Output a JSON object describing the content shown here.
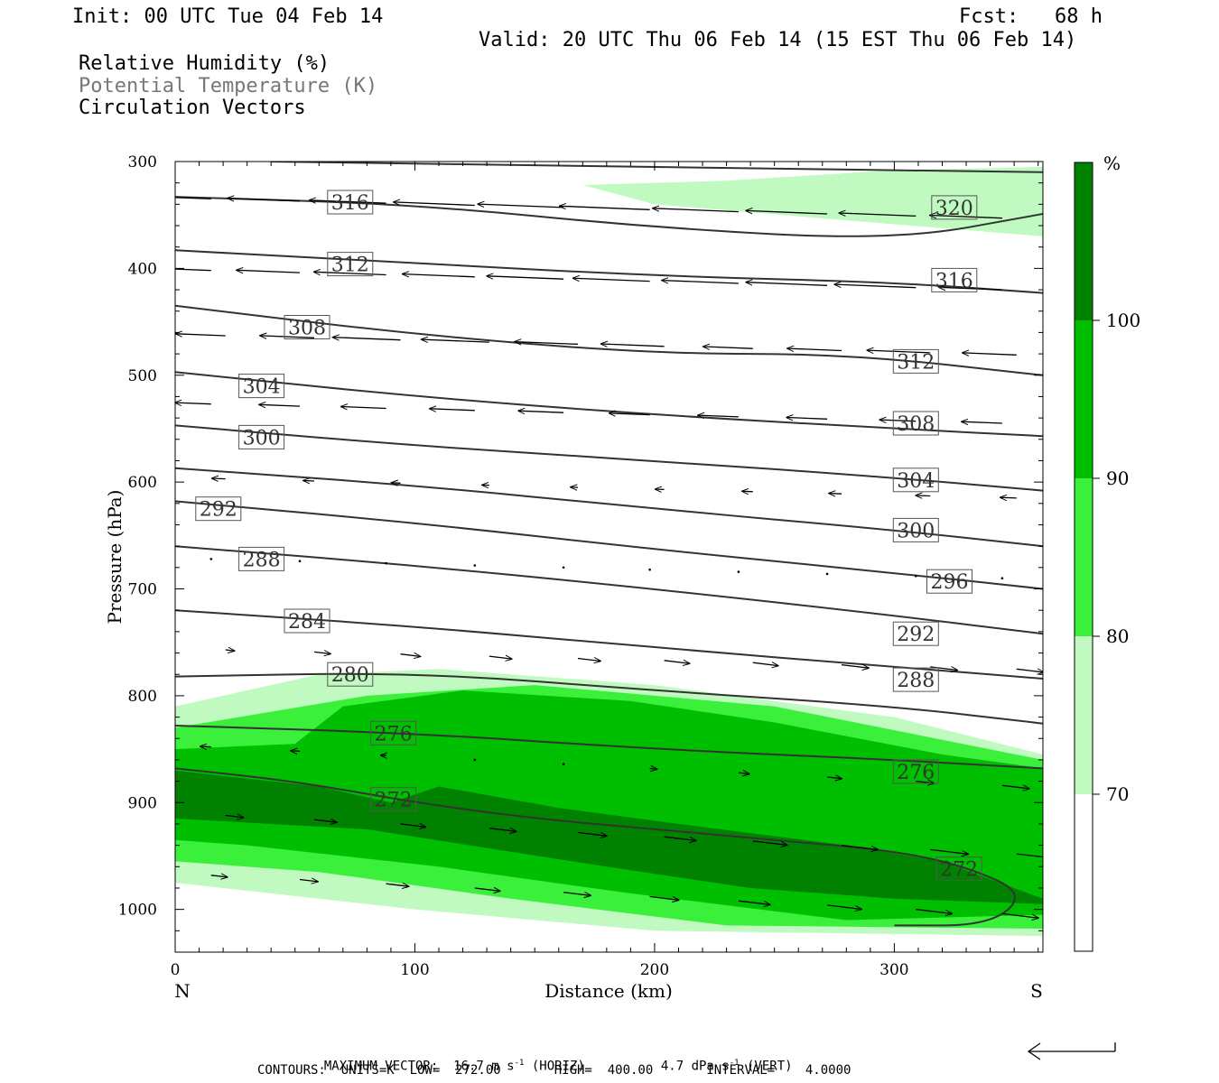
{
  "header": {
    "init": "Init: 00 UTC Tue 04 Feb 14",
    "fcst": "Fcst:   68 h",
    "valid": "Valid: 20 UTC Thu 06 Feb 14 (15 EST Thu 06 Feb 14)"
  },
  "fields": {
    "rh": "Relative Humidity (%)",
    "theta": "Potential Temperature (K)",
    "vectors": "Circulation Vectors"
  },
  "colors": {
    "rh70": "#c0fac0",
    "rh80": "#3af03a",
    "rh90": "#00be00",
    "rh100": "#008200",
    "theta_line": "#333333",
    "frame": "#000000"
  },
  "chart_data": {
    "type": "contour",
    "xlabel": "Distance (km)",
    "ylabel": "Pressure (hPa)",
    "xlim": [
      0,
      362
    ],
    "ylim": [
      1040,
      300
    ],
    "xticks": [
      "0",
      "100",
      "200",
      "300"
    ],
    "yticks": [
      "300",
      "400",
      "500",
      "600",
      "700",
      "800",
      "900",
      "1000"
    ],
    "left_endpoint": "N",
    "right_endpoint": "S",
    "colorbar": {
      "unit": "%",
      "levels": [
        "70",
        "80",
        "90",
        "100"
      ]
    },
    "theta_contours": [
      {
        "label": "272",
        "points": [
          [
            0,
            868
          ],
          [
            50,
            880
          ],
          [
            100,
            900
          ],
          [
            150,
            915
          ],
          [
            200,
            925
          ],
          [
            250,
            935
          ],
          [
            300,
            945
          ],
          [
            330,
            960
          ],
          [
            355,
            985
          ],
          [
            340,
            1015
          ],
          [
            300,
            1015
          ]
        ]
      },
      {
        "label": "276",
        "points": [
          [
            0,
            828
          ],
          [
            100,
            835
          ],
          [
            200,
            850
          ],
          [
            300,
            860
          ],
          [
            362,
            868
          ]
        ]
      },
      {
        "label": "280",
        "points": [
          [
            0,
            782
          ],
          [
            100,
            778
          ],
          [
            200,
            795
          ],
          [
            300,
            810
          ],
          [
            362,
            826
          ]
        ]
      },
      {
        "label": "284",
        "points": [
          [
            0,
            720
          ],
          [
            100,
            735
          ],
          [
            200,
            755
          ],
          [
            300,
            773
          ],
          [
            362,
            784
          ]
        ]
      },
      {
        "label": "288",
        "points": [
          [
            0,
            660
          ],
          [
            100,
            678
          ],
          [
            200,
            700
          ],
          [
            300,
            725
          ],
          [
            362,
            742
          ]
        ]
      },
      {
        "label": "292",
        "points": [
          [
            0,
            618
          ],
          [
            100,
            638
          ],
          [
            200,
            663
          ],
          [
            300,
            685
          ],
          [
            362,
            700
          ]
        ]
      },
      {
        "label": "296",
        "points": [
          [
            0,
            587
          ],
          [
            100,
            603
          ],
          [
            200,
            625
          ],
          [
            300,
            645
          ],
          [
            362,
            660
          ]
        ]
      },
      {
        "label": "300",
        "points": [
          [
            0,
            547
          ],
          [
            100,
            566
          ],
          [
            200,
            580
          ],
          [
            300,
            596
          ],
          [
            362,
            608
          ]
        ]
      },
      {
        "label": "304",
        "points": [
          [
            0,
            497
          ],
          [
            100,
            520
          ],
          [
            200,
            537
          ],
          [
            300,
            550
          ],
          [
            362,
            557
          ]
        ]
      },
      {
        "label": "308",
        "points": [
          [
            0,
            435
          ],
          [
            100,
            462
          ],
          [
            200,
            480
          ],
          [
            280,
            480
          ],
          [
            362,
            500
          ]
        ]
      },
      {
        "label": "312",
        "points": [
          [
            0,
            383
          ],
          [
            100,
            395
          ],
          [
            200,
            407
          ],
          [
            300,
            413
          ],
          [
            362,
            423
          ]
        ]
      },
      {
        "label": "316",
        "points": [
          [
            0,
            333
          ],
          [
            100,
            340
          ],
          [
            200,
            362
          ],
          [
            300,
            374
          ],
          [
            362,
            349
          ]
        ]
      },
      {
        "label": "320",
        "points": [
          [
            40,
            300
          ],
          [
            200,
            305
          ],
          [
            362,
            310
          ]
        ]
      }
    ],
    "theta_labels": [
      {
        "text": "316",
        "x": 73,
        "y": 338
      },
      {
        "text": "312",
        "x": 73,
        "y": 396
      },
      {
        "text": "308",
        "x": 55,
        "y": 455
      },
      {
        "text": "304",
        "x": 36,
        "y": 510
      },
      {
        "text": "300",
        "x": 36,
        "y": 558
      },
      {
        "text": "292",
        "x": 18,
        "y": 625
      },
      {
        "text": "288",
        "x": 36,
        "y": 672
      },
      {
        "text": "284",
        "x": 55,
        "y": 730
      },
      {
        "text": "280",
        "x": 73,
        "y": 780
      },
      {
        "text": "276",
        "x": 91,
        "y": 835
      },
      {
        "text": "272",
        "x": 91,
        "y": 897
      },
      {
        "text": "320",
        "x": 325,
        "y": 343
      },
      {
        "text": "316",
        "x": 325,
        "y": 411
      },
      {
        "text": "312",
        "x": 309,
        "y": 487
      },
      {
        "text": "308",
        "x": 309,
        "y": 545
      },
      {
        "text": "304",
        "x": 309,
        "y": 598
      },
      {
        "text": "300",
        "x": 309,
        "y": 645
      },
      {
        "text": "296",
        "x": 323,
        "y": 693
      },
      {
        "text": "292",
        "x": 309,
        "y": 742
      },
      {
        "text": "288",
        "x": 309,
        "y": 785
      },
      {
        "text": "276",
        "x": 309,
        "y": 871
      },
      {
        "text": "272",
        "x": 327,
        "y": 962
      }
    ],
    "rh_regions": [
      {
        "level": "70",
        "points": [
          [
            170,
            322
          ],
          [
            200,
            340
          ],
          [
            280,
            355
          ],
          [
            362,
            370
          ],
          [
            362,
            305
          ],
          [
            300,
            308
          ],
          [
            230,
            318
          ]
        ]
      },
      {
        "level": "70",
        "points": [
          [
            0,
            810
          ],
          [
            60,
            780
          ],
          [
            110,
            775
          ],
          [
            200,
            790
          ],
          [
            300,
            820
          ],
          [
            362,
            855
          ],
          [
            362,
            1025
          ],
          [
            200,
            1020
          ],
          [
            100,
            1000
          ],
          [
            0,
            975
          ]
        ]
      },
      {
        "level": "80",
        "points": [
          [
            0,
            830
          ],
          [
            80,
            800
          ],
          [
            150,
            790
          ],
          [
            250,
            810
          ],
          [
            362,
            860
          ],
          [
            362,
            1018
          ],
          [
            230,
            1015
          ],
          [
            140,
            990
          ],
          [
            60,
            965
          ],
          [
            0,
            955
          ]
        ]
      },
      {
        "level": "90",
        "points": [
          [
            0,
            850
          ],
          [
            50,
            845
          ],
          [
            70,
            810
          ],
          [
            120,
            795
          ],
          [
            190,
            805
          ],
          [
            250,
            825
          ],
          [
            320,
            855
          ],
          [
            362,
            868
          ],
          [
            362,
            1005
          ],
          [
            280,
            1010
          ],
          [
            190,
            985
          ],
          [
            110,
            960
          ],
          [
            30,
            940
          ],
          [
            0,
            935
          ]
        ]
      },
      {
        "level": "100",
        "points": [
          [
            0,
            870
          ],
          [
            60,
            885
          ],
          [
            90,
            900
          ],
          [
            110,
            885
          ],
          [
            160,
            905
          ],
          [
            210,
            920
          ],
          [
            280,
            940
          ],
          [
            320,
            955
          ],
          [
            350,
            980
          ],
          [
            362,
            990
          ],
          [
            362,
            995
          ],
          [
            300,
            990
          ],
          [
            240,
            980
          ],
          [
            180,
            960
          ],
          [
            80,
            925
          ],
          [
            0,
            915
          ]
        ]
      }
    ],
    "vectors_note": "Circulation vectors drawn as arrows (horizontal + vertical components)",
    "footer": {
      "line1a": "MAXIMUM VECTOR:  16.7 m s",
      "line1b": " (HORIZ)",
      "line1c": "4.7 dPa s",
      "line1d": " (VERT)",
      "exp": "-1",
      "line2": "CONTOURS:  UNITS=K  LOW=  272.00       HIGH=  400.00       INTERVAL=    4.0000"
    }
  }
}
